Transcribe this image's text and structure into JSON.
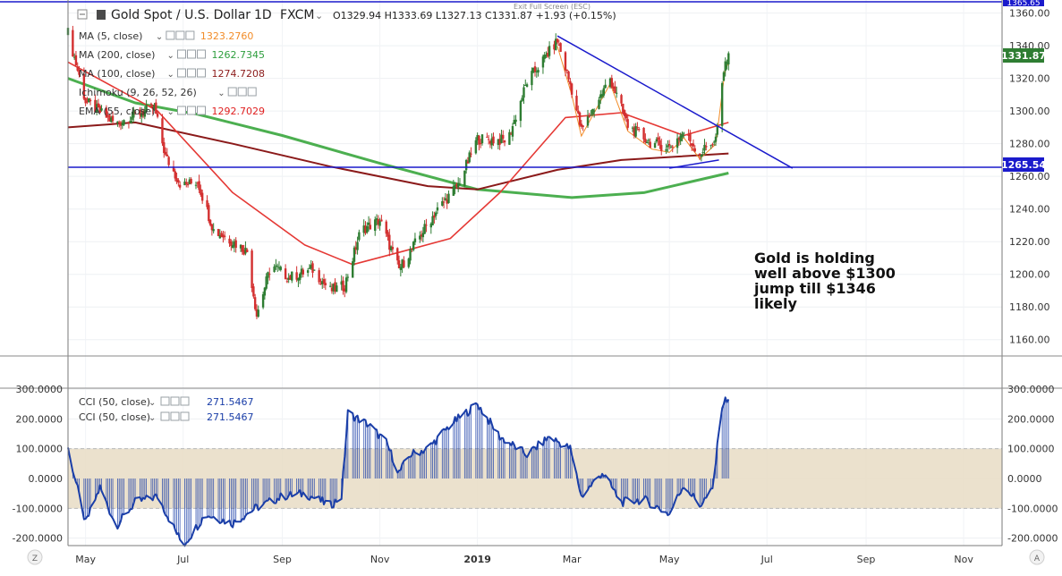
{
  "header": {
    "symbol_title": "Gold Spot / U.S. Dollar",
    "interval": "1D",
    "source": "FXCM",
    "ohlc": "O1329.94  H1333.69  L1327.13  C1331.87  +1.93 (+0.15%)",
    "exit_fullscreen": "Exit Full Screen (ESC)"
  },
  "indicators": [
    {
      "label": "MA (5, close)",
      "value": "1323.2760",
      "color": "#f28c28"
    },
    {
      "label": "MA (200, close)",
      "value": "1262.7345",
      "color": "#2e9e3e"
    },
    {
      "label": "MA (100, close)",
      "value": "1274.7208",
      "color": "#8b1a1a"
    },
    {
      "label": "Ichimoku (9, 26, 52, 26)",
      "value": "",
      "color": "#2962ff"
    },
    {
      "label": "EMA (55, close)",
      "value": "1292.7029",
      "color": "#e02020"
    }
  ],
  "annotation": {
    "lines": [
      "Gold is holding",
      "well above $1300",
      "jump till $1346",
      "likely"
    ]
  },
  "price_badges": {
    "last": "1331.87",
    "line": "1265.54",
    "top": "1365.65"
  },
  "cci_legend": [
    {
      "label": "CCI (50, close)",
      "value": "271.5467"
    },
    {
      "label": "CCI (50, close)",
      "value": "271.5467"
    }
  ],
  "bottom_bar": {
    "left_icon": "Z",
    "right_icon": "A"
  },
  "colors": {
    "up_candle": "#2e7d32",
    "down_candle": "#d32f2f",
    "trendline": "#1a1acc",
    "ma200": "#4caf50",
    "ma100": "#8b1a1a",
    "ema55": "#e53935",
    "ma5": "#f28c28",
    "cci_line": "#1a3ea8",
    "cci_band": "#e8dcc4"
  },
  "chart_data": [
    {
      "type": "candlestick",
      "title": "Gold Spot / U.S. Dollar, 1D, FXCM",
      "x_tick_labels": [
        "May",
        "Jul",
        "Sep",
        "Nov",
        "2019",
        "Mar",
        "May",
        "Jul",
        "Sep",
        "Nov"
      ],
      "y_tick_labels": [
        "1160.00",
        "1180.00",
        "1200.00",
        "1220.00",
        "1240.00",
        "1260.00",
        "1280.00",
        "1300.00",
        "1320.00",
        "1340.00",
        "1360.00"
      ],
      "ylim": [
        1150,
        1368
      ],
      "close_path": [
        [
          "2018-04-20",
          1348
        ],
        [
          "2018-05-01",
          1306
        ],
        [
          "2018-05-20",
          1292
        ],
        [
          "2018-06-01",
          1298
        ],
        [
          "2018-06-13",
          1302
        ],
        [
          "2018-06-20",
          1272
        ],
        [
          "2018-06-30",
          1254
        ],
        [
          "2018-07-10",
          1257
        ],
        [
          "2018-07-20",
          1227
        ],
        [
          "2018-08-01",
          1220
        ],
        [
          "2018-08-10",
          1214
        ],
        [
          "2018-08-16",
          1175
        ],
        [
          "2018-08-25",
          1206
        ],
        [
          "2018-09-05",
          1198
        ],
        [
          "2018-09-20",
          1203
        ],
        [
          "2018-10-01",
          1190
        ],
        [
          "2018-10-10",
          1193
        ],
        [
          "2018-10-20",
          1227
        ],
        [
          "2018-11-01",
          1233
        ],
        [
          "2018-11-13",
          1203
        ],
        [
          "2018-11-25",
          1222
        ],
        [
          "2018-12-05",
          1237
        ],
        [
          "2018-12-20",
          1255
        ],
        [
          "2019-01-01",
          1283
        ],
        [
          "2019-01-20",
          1282
        ],
        [
          "2019-02-01",
          1318
        ],
        [
          "2019-02-20",
          1343
        ],
        [
          "2019-03-01",
          1313
        ],
        [
          "2019-03-07",
          1288
        ],
        [
          "2019-03-25",
          1320
        ],
        [
          "2019-04-05",
          1291
        ],
        [
          "2019-04-20",
          1280
        ],
        [
          "2019-05-01",
          1278
        ],
        [
          "2019-05-10",
          1287
        ],
        [
          "2019-05-20",
          1274
        ],
        [
          "2019-05-30",
          1283
        ],
        [
          "2019-06-05",
          1330
        ],
        [
          "2019-06-07",
          1332
        ]
      ],
      "moving_averages": [
        {
          "name": "MA (200, close)",
          "values": [
            [
              "2018-04-20",
              1320
            ],
            [
              "2018-06-01",
              1305
            ],
            [
              "2018-07-10",
              1298
            ],
            [
              "2018-09-01",
              1285
            ],
            [
              "2018-11-01",
              1268
            ],
            [
              "2019-01-01",
              1252
            ],
            [
              "2019-03-01",
              1247
            ],
            [
              "2019-04-15",
              1250
            ],
            [
              "2019-06-07",
              1262
            ]
          ]
        },
        {
          "name": "MA (100, close)",
          "values": [
            [
              "2018-04-20",
              1290
            ],
            [
              "2018-06-01",
              1293
            ],
            [
              "2018-08-01",
              1280
            ],
            [
              "2018-10-01",
              1266
            ],
            [
              "2018-12-01",
              1254
            ],
            [
              "2019-01-01",
              1252
            ],
            [
              "2019-02-20",
              1264
            ],
            [
              "2019-04-01",
              1270
            ],
            [
              "2019-06-07",
              1274
            ]
          ]
        },
        {
          "name": "EMA (55, close)",
          "values": [
            [
              "2018-04-20",
              1330
            ],
            [
              "2018-06-15",
              1300
            ],
            [
              "2018-08-01",
              1250
            ],
            [
              "2018-09-15",
              1218
            ],
            [
              "2018-10-15",
              1206
            ],
            [
              "2018-11-15",
              1214
            ],
            [
              "2018-12-15",
              1222
            ],
            [
              "2019-01-15",
              1250
            ],
            [
              "2019-02-25",
              1296
            ],
            [
              "2019-04-01",
              1299
            ],
            [
              "2019-05-10",
              1285
            ],
            [
              "2019-06-07",
              1293
            ]
          ]
        }
      ],
      "trendlines": [
        {
          "from": [
            "2019-02-20",
            1346
          ],
          "to": [
            "2019-07-17",
            1265
          ]
        },
        {
          "from": [
            "2019-05-01",
            1265
          ],
          "to": [
            "2019-06-01",
            1270
          ]
        },
        {
          "horizontal": 1265.54
        }
      ]
    },
    {
      "type": "line",
      "title": "CCI (50, close)",
      "y_tick_labels": [
        "-200.0000",
        "-100.0000",
        "0.0000",
        "100.0000",
        "200.0000",
        "300.0000"
      ],
      "ylim": [
        -225,
        300
      ],
      "band": [
        -100,
        100
      ],
      "values": [
        [
          "2018-04-20",
          100
        ],
        [
          "2018-05-01",
          -150
        ],
        [
          "2018-05-10",
          -30
        ],
        [
          "2018-05-20",
          -160
        ],
        [
          "2018-06-01",
          -80
        ],
        [
          "2018-06-15",
          -60
        ],
        [
          "2018-07-01",
          -225
        ],
        [
          "2018-07-15",
          -120
        ],
        [
          "2018-08-01",
          -150
        ],
        [
          "2018-08-15",
          -100
        ],
        [
          "2018-09-01",
          -60
        ],
        [
          "2018-09-15",
          -50
        ],
        [
          "2018-10-01",
          -90
        ],
        [
          "2018-10-08",
          -60
        ],
        [
          "2018-10-12",
          220
        ],
        [
          "2018-10-25",
          180
        ],
        [
          "2018-11-05",
          120
        ],
        [
          "2018-11-13",
          20
        ],
        [
          "2018-11-20",
          80
        ],
        [
          "2018-12-01",
          100
        ],
        [
          "2018-12-15",
          180
        ],
        [
          "2019-01-01",
          250
        ],
        [
          "2019-01-15",
          140
        ],
        [
          "2019-02-01",
          80
        ],
        [
          "2019-02-15",
          140
        ],
        [
          "2019-02-28",
          100
        ],
        [
          "2019-03-07",
          -60
        ],
        [
          "2019-03-20",
          20
        ],
        [
          "2019-04-01",
          -80
        ],
        [
          "2019-04-15",
          -70
        ],
        [
          "2019-05-01",
          -120
        ],
        [
          "2019-05-10",
          -20
        ],
        [
          "2019-05-20",
          -90
        ],
        [
          "2019-05-28",
          -40
        ],
        [
          "2019-06-03",
          250
        ],
        [
          "2019-06-07",
          271.55
        ]
      ]
    }
  ]
}
